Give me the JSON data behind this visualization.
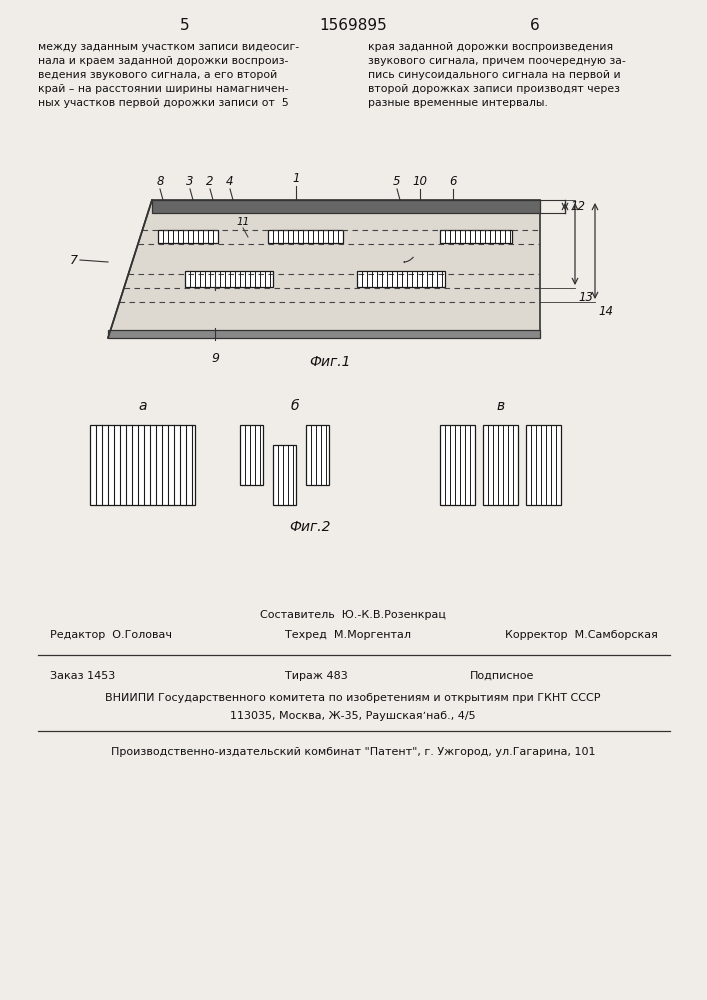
{
  "bg_color": "#f0ede8",
  "page_number_left": "5",
  "page_number_center": "1569895",
  "page_number_right": "6",
  "text_left_col": "между заданным участком записи видеосиг-\nнала и краем заданной дорожки воспроиз-\nведения звукового сигнала, а его второй\nкрай – на расстоянии ширины намагничен-\nных участков первой дорожки записи от  5",
  "text_right_col": "края заданной дорожки воспроизведения\nзвукового сигнала, причем поочередную за-\nпись синусоидального сигнала на первой и\nвторой дорожках записи производят через\nразные временные интервалы.",
  "fig1_label": "Фиг.1",
  "fig2_label": "Фиг.2",
  "fig2_a_label": "а",
  "fig2_b_label": "б",
  "fig2_v_label": "в",
  "footer_line1": "Составитель  Ю.-К.В.Розенкрац",
  "footer_editor": "Редактор  О.Головач",
  "footer_techred": "Техред  М.Моргентал",
  "footer_corrector": "Корректор  М.Самборская",
  "footer_zakaz": "Заказ 1453",
  "footer_tirazh": "Тираж 483",
  "footer_podpisnoe": "Подписное",
  "footer_vniiipi": "ВНИИПИ Государственного комитета по изобретениям и открытиям при ГКНТ СССР",
  "footer_address": "113035, Москва, Ж-35, Раушскаяʼнаб., 4/5",
  "footer_publisher": "Производственно-издательский комбинат \"Патент\", г. Ужгород, ул.Гагарина, 101"
}
